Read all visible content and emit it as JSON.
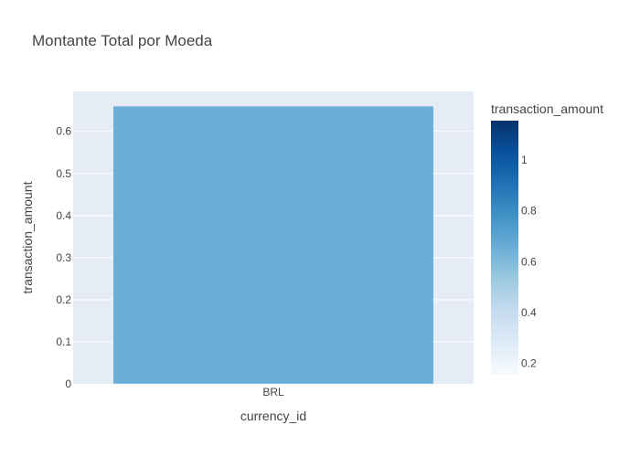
{
  "chart_data": {
    "type": "bar",
    "title": "Montante Total por Moeda",
    "xlabel": "currency_id",
    "ylabel": "transaction_amount",
    "categories": [
      "BRL"
    ],
    "values": [
      0.66
    ],
    "ylim": [
      0,
      0.695
    ],
    "yticks": [
      0,
      0.1,
      0.2,
      0.3,
      0.4,
      0.5,
      0.6
    ],
    "ytick_labels": [
      "0",
      "0.1",
      "0.2",
      "0.3",
      "0.4",
      "0.5",
      "0.6"
    ],
    "grid": true,
    "colorbar": {
      "title": "transaction_amount",
      "range": [
        0.155,
        1.155
      ],
      "ticks": [
        0.2,
        0.4,
        0.6,
        0.8,
        1
      ],
      "tick_labels": [
        "0.2",
        "0.4",
        "0.6",
        "0.8",
        "1"
      ],
      "colorscale": [
        "#f7fbff",
        "#deebf7",
        "#c6dbef",
        "#9ecae1",
        "#6baed6",
        "#4292c6",
        "#2171b5",
        "#08519c",
        "#08306b"
      ]
    },
    "colors": {
      "plot_background": "#e5ecf6",
      "bar": "#6aaed6",
      "gridline": "#ffffff",
      "text": "#444444"
    }
  }
}
